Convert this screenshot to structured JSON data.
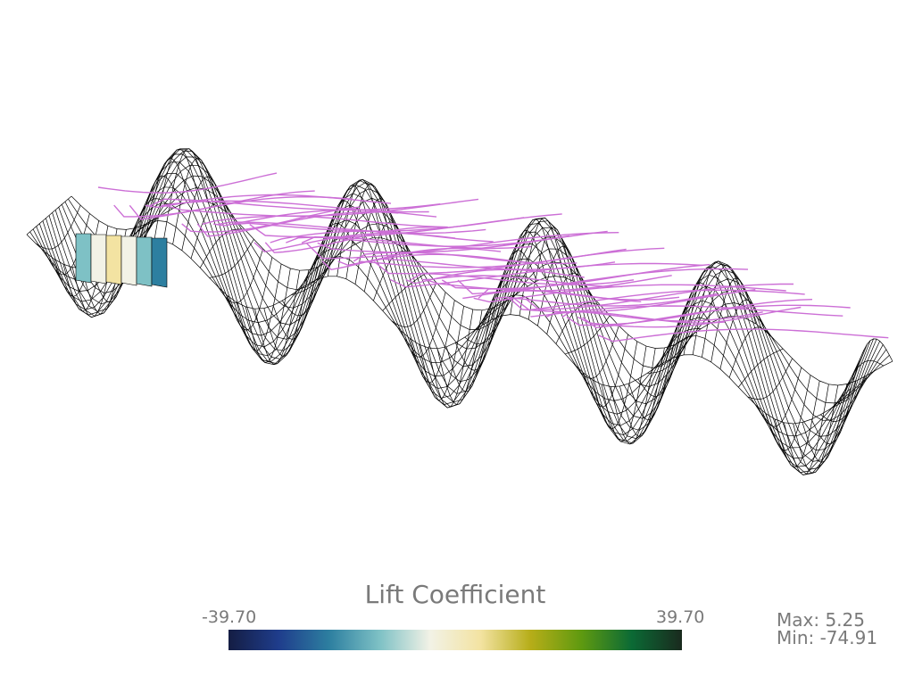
{
  "scalar_bar": {
    "title": "Lift Coefficient",
    "min_label": "-39.70",
    "max_label": "39.70",
    "colormap": [
      "#141d43",
      "#1f3d8c",
      "#2d7fa0",
      "#7ec1c5",
      "#f2f2e6",
      "#f3e3a2",
      "#b6ad18",
      "#5f9a10",
      "#0b6a35",
      "#1a2a1e"
    ]
  },
  "stats": {
    "max_text": "Max: 5.25",
    "min_text": "Min: -74.91"
  },
  "scene": {
    "mesh_color": "#000000",
    "surface_fill": "#ffffff",
    "streamline_color": "#cc6fd6"
  }
}
